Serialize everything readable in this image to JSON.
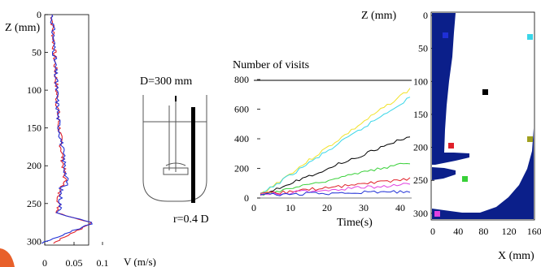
{
  "panel_velocity": {
    "y_label": "Z (mm)",
    "x_label": "V (m/s)",
    "y_ticks": [
      "0",
      "50",
      "100",
      "150",
      "200",
      "250",
      "300"
    ],
    "x_ticks": [
      "0",
      "0.05",
      "0.1"
    ],
    "series": [
      {
        "color": "#e0202a"
      },
      {
        "color": "#1f2fd6"
      }
    ]
  },
  "panel_vessel": {
    "diameter_label": "D=300 mm",
    "radius_label": "r=0.4 D"
  },
  "panel_visits": {
    "title": "Number of visits",
    "x_label": "Time(s)",
    "y_ticks": [
      "0",
      "200",
      "400",
      "600",
      "800"
    ],
    "x_ticks": [
      "0",
      "10",
      "20",
      "30",
      "40"
    ],
    "series_colors": [
      "#f2e22a",
      "#3ad6e8",
      "#000000",
      "#38d038",
      "#e0202a",
      "#e040e0",
      "#1f2fd6"
    ]
  },
  "panel_map": {
    "y_label": "Z (mm)",
    "x_label": "X (mm)",
    "y_ticks": [
      "0",
      "50",
      "100",
      "150",
      "200",
      "250",
      "300"
    ],
    "x_ticks": [
      "0",
      "40",
      "80",
      "120",
      "160"
    ],
    "fill_color": "#0b1f8a",
    "markers": [
      {
        "color": "#1f2fd6"
      },
      {
        "color": "#3ad6e8"
      },
      {
        "color": "#000000"
      },
      {
        "color": "#e0202a"
      },
      {
        "color": "#a0a020"
      },
      {
        "color": "#38d038"
      },
      {
        "color": "#e040e0"
      }
    ]
  }
}
